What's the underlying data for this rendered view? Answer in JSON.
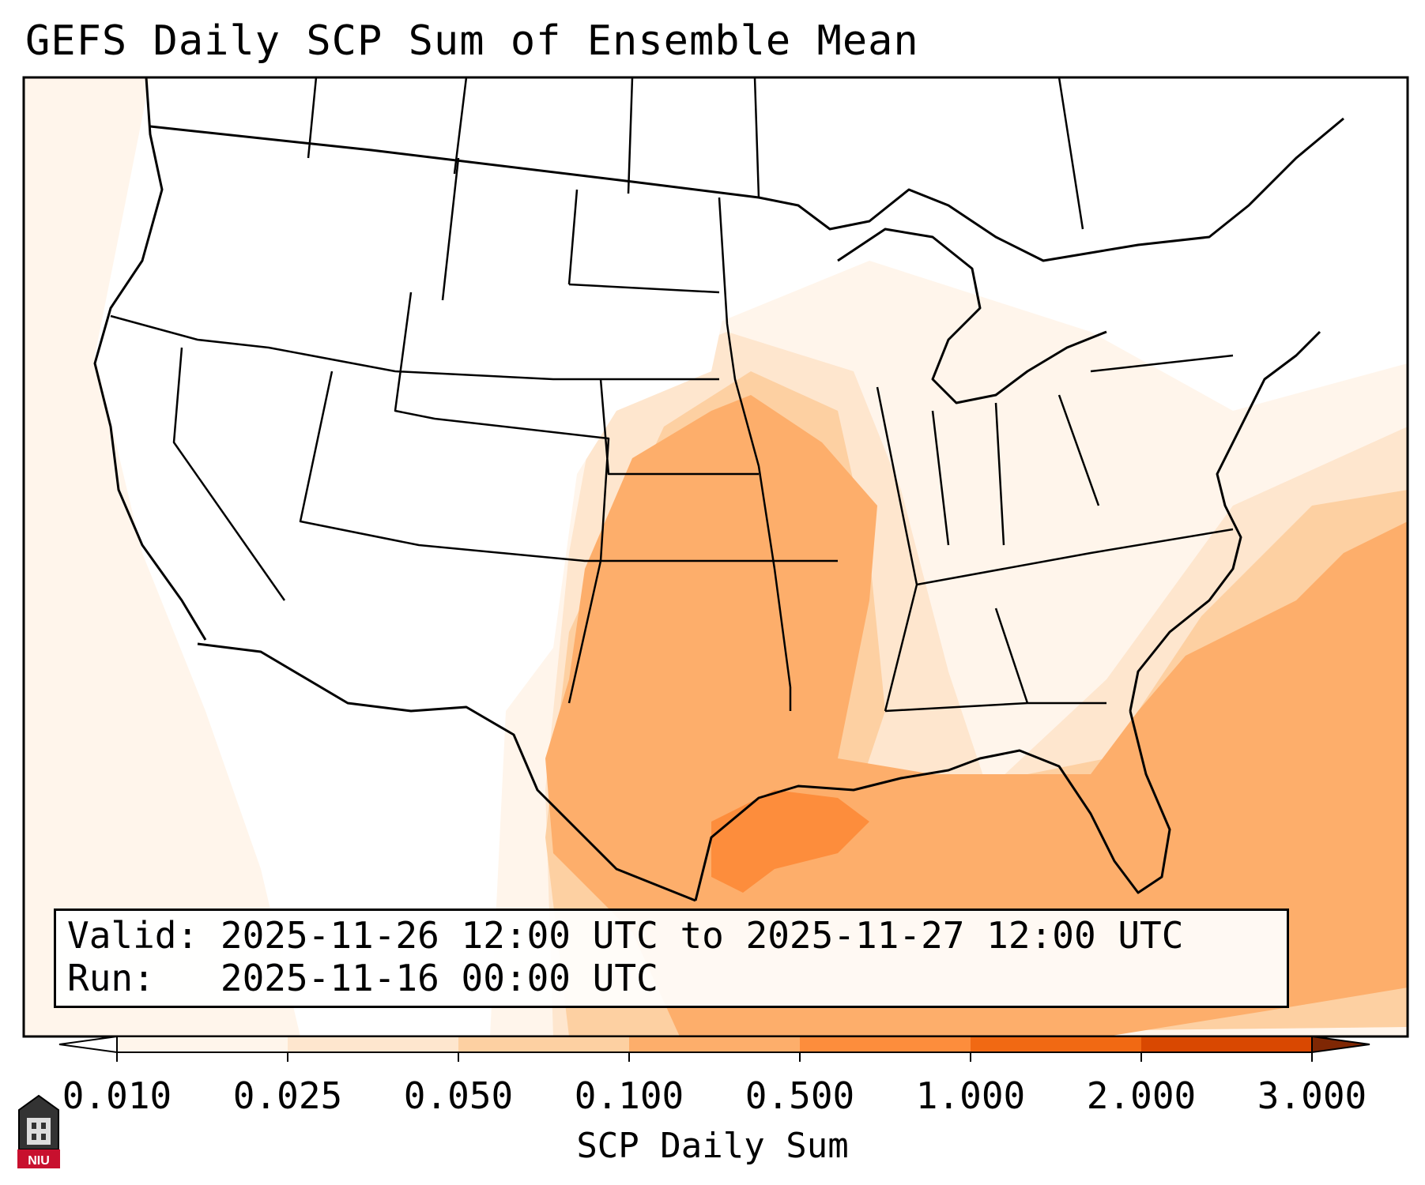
{
  "title": "GEFS Daily SCP Sum of Ensemble Mean",
  "info": {
    "valid_label": "Valid:",
    "valid_range": "2025-11-26 12:00 UTC to 2025-11-27 12:00 UTC",
    "run_label": "Run:",
    "run_time": "2025-11-16 00:00 UTC"
  },
  "colorbar": {
    "label": "SCP Daily Sum",
    "ticks": [
      "0.010",
      "0.025",
      "0.050",
      "0.100",
      "0.500",
      "1.000",
      "2.000",
      "3.000"
    ],
    "colors": [
      "#fff5eb",
      "#fee6ce",
      "#fdd0a2",
      "#fdae6b",
      "#fd8d3c",
      "#f16913",
      "#d94801",
      "#a63603"
    ]
  },
  "map": {
    "region": "CONUS",
    "fill_regions": [
      {
        "area": "Gulf of Mexico / Texas coast",
        "level": "0.500"
      },
      {
        "area": "Texas, Oklahoma, Kansas, Arkansas, Missouri",
        "level": "0.100"
      },
      {
        "area": "Southeast US / Western Atlantic",
        "level": "0.050"
      },
      {
        "area": "Midwest, Ohio Valley, Eastern Pacific",
        "level": "0.010"
      }
    ]
  },
  "logo_text": "NIU"
}
